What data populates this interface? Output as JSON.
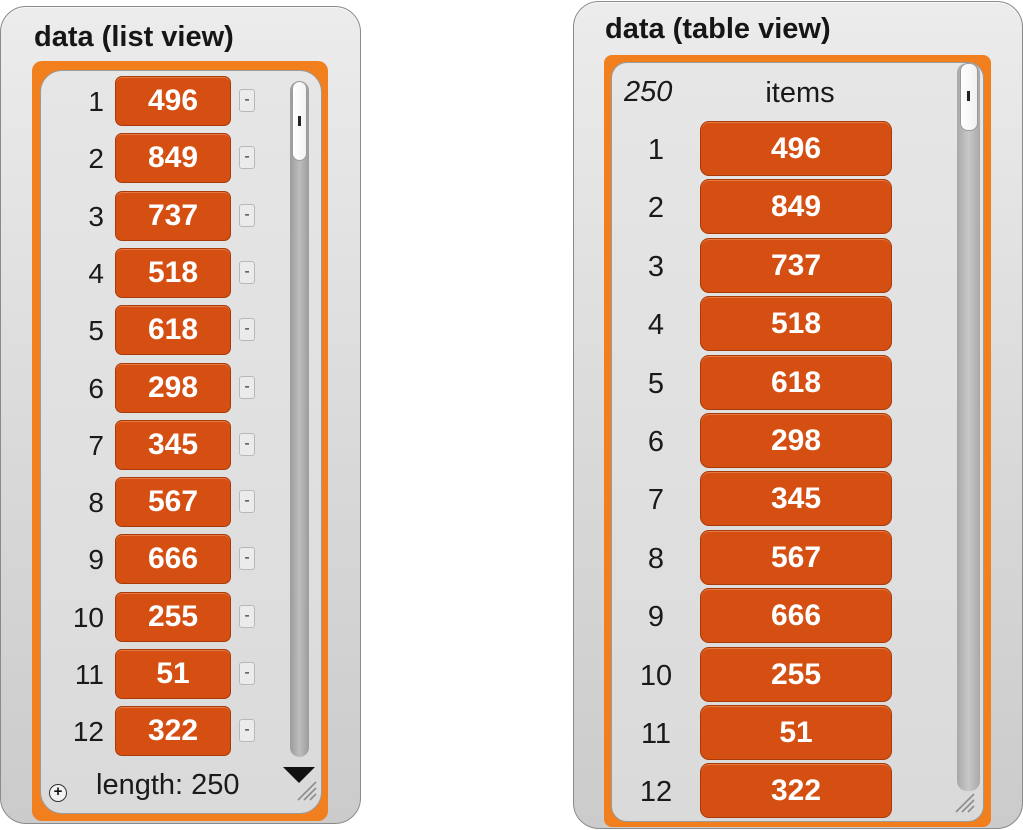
{
  "list_view": {
    "title": "data (list view)",
    "rows": [
      {
        "index": "1",
        "value": "496"
      },
      {
        "index": "2",
        "value": "849"
      },
      {
        "index": "3",
        "value": "737"
      },
      {
        "index": "4",
        "value": "518"
      },
      {
        "index": "5",
        "value": "618"
      },
      {
        "index": "6",
        "value": "298"
      },
      {
        "index": "7",
        "value": "345"
      },
      {
        "index": "8",
        "value": "567"
      },
      {
        "index": "9",
        "value": "666"
      },
      {
        "index": "10",
        "value": "255"
      },
      {
        "index": "11",
        "value": "51"
      },
      {
        "index": "12",
        "value": "322"
      }
    ],
    "remove_label": "-",
    "add_label": "+",
    "length_label": "length: 250"
  },
  "table_view": {
    "title": "data (table view)",
    "row_count": "250",
    "column_header": "items",
    "rows": [
      {
        "index": "1",
        "value": "496"
      },
      {
        "index": "2",
        "value": "849"
      },
      {
        "index": "3",
        "value": "737"
      },
      {
        "index": "4",
        "value": "518"
      },
      {
        "index": "5",
        "value": "618"
      },
      {
        "index": "6",
        "value": "298"
      },
      {
        "index": "7",
        "value": "345"
      },
      {
        "index": "8",
        "value": "567"
      },
      {
        "index": "9",
        "value": "666"
      },
      {
        "index": "10",
        "value": "255"
      },
      {
        "index": "11",
        "value": "51"
      },
      {
        "index": "12",
        "value": "322"
      }
    ]
  },
  "colors": {
    "frame_orange": "#f27f1e",
    "cell_orange": "#d64f12",
    "cell_text": "#ffffff",
    "panel_gray": "#d9d9d9"
  }
}
